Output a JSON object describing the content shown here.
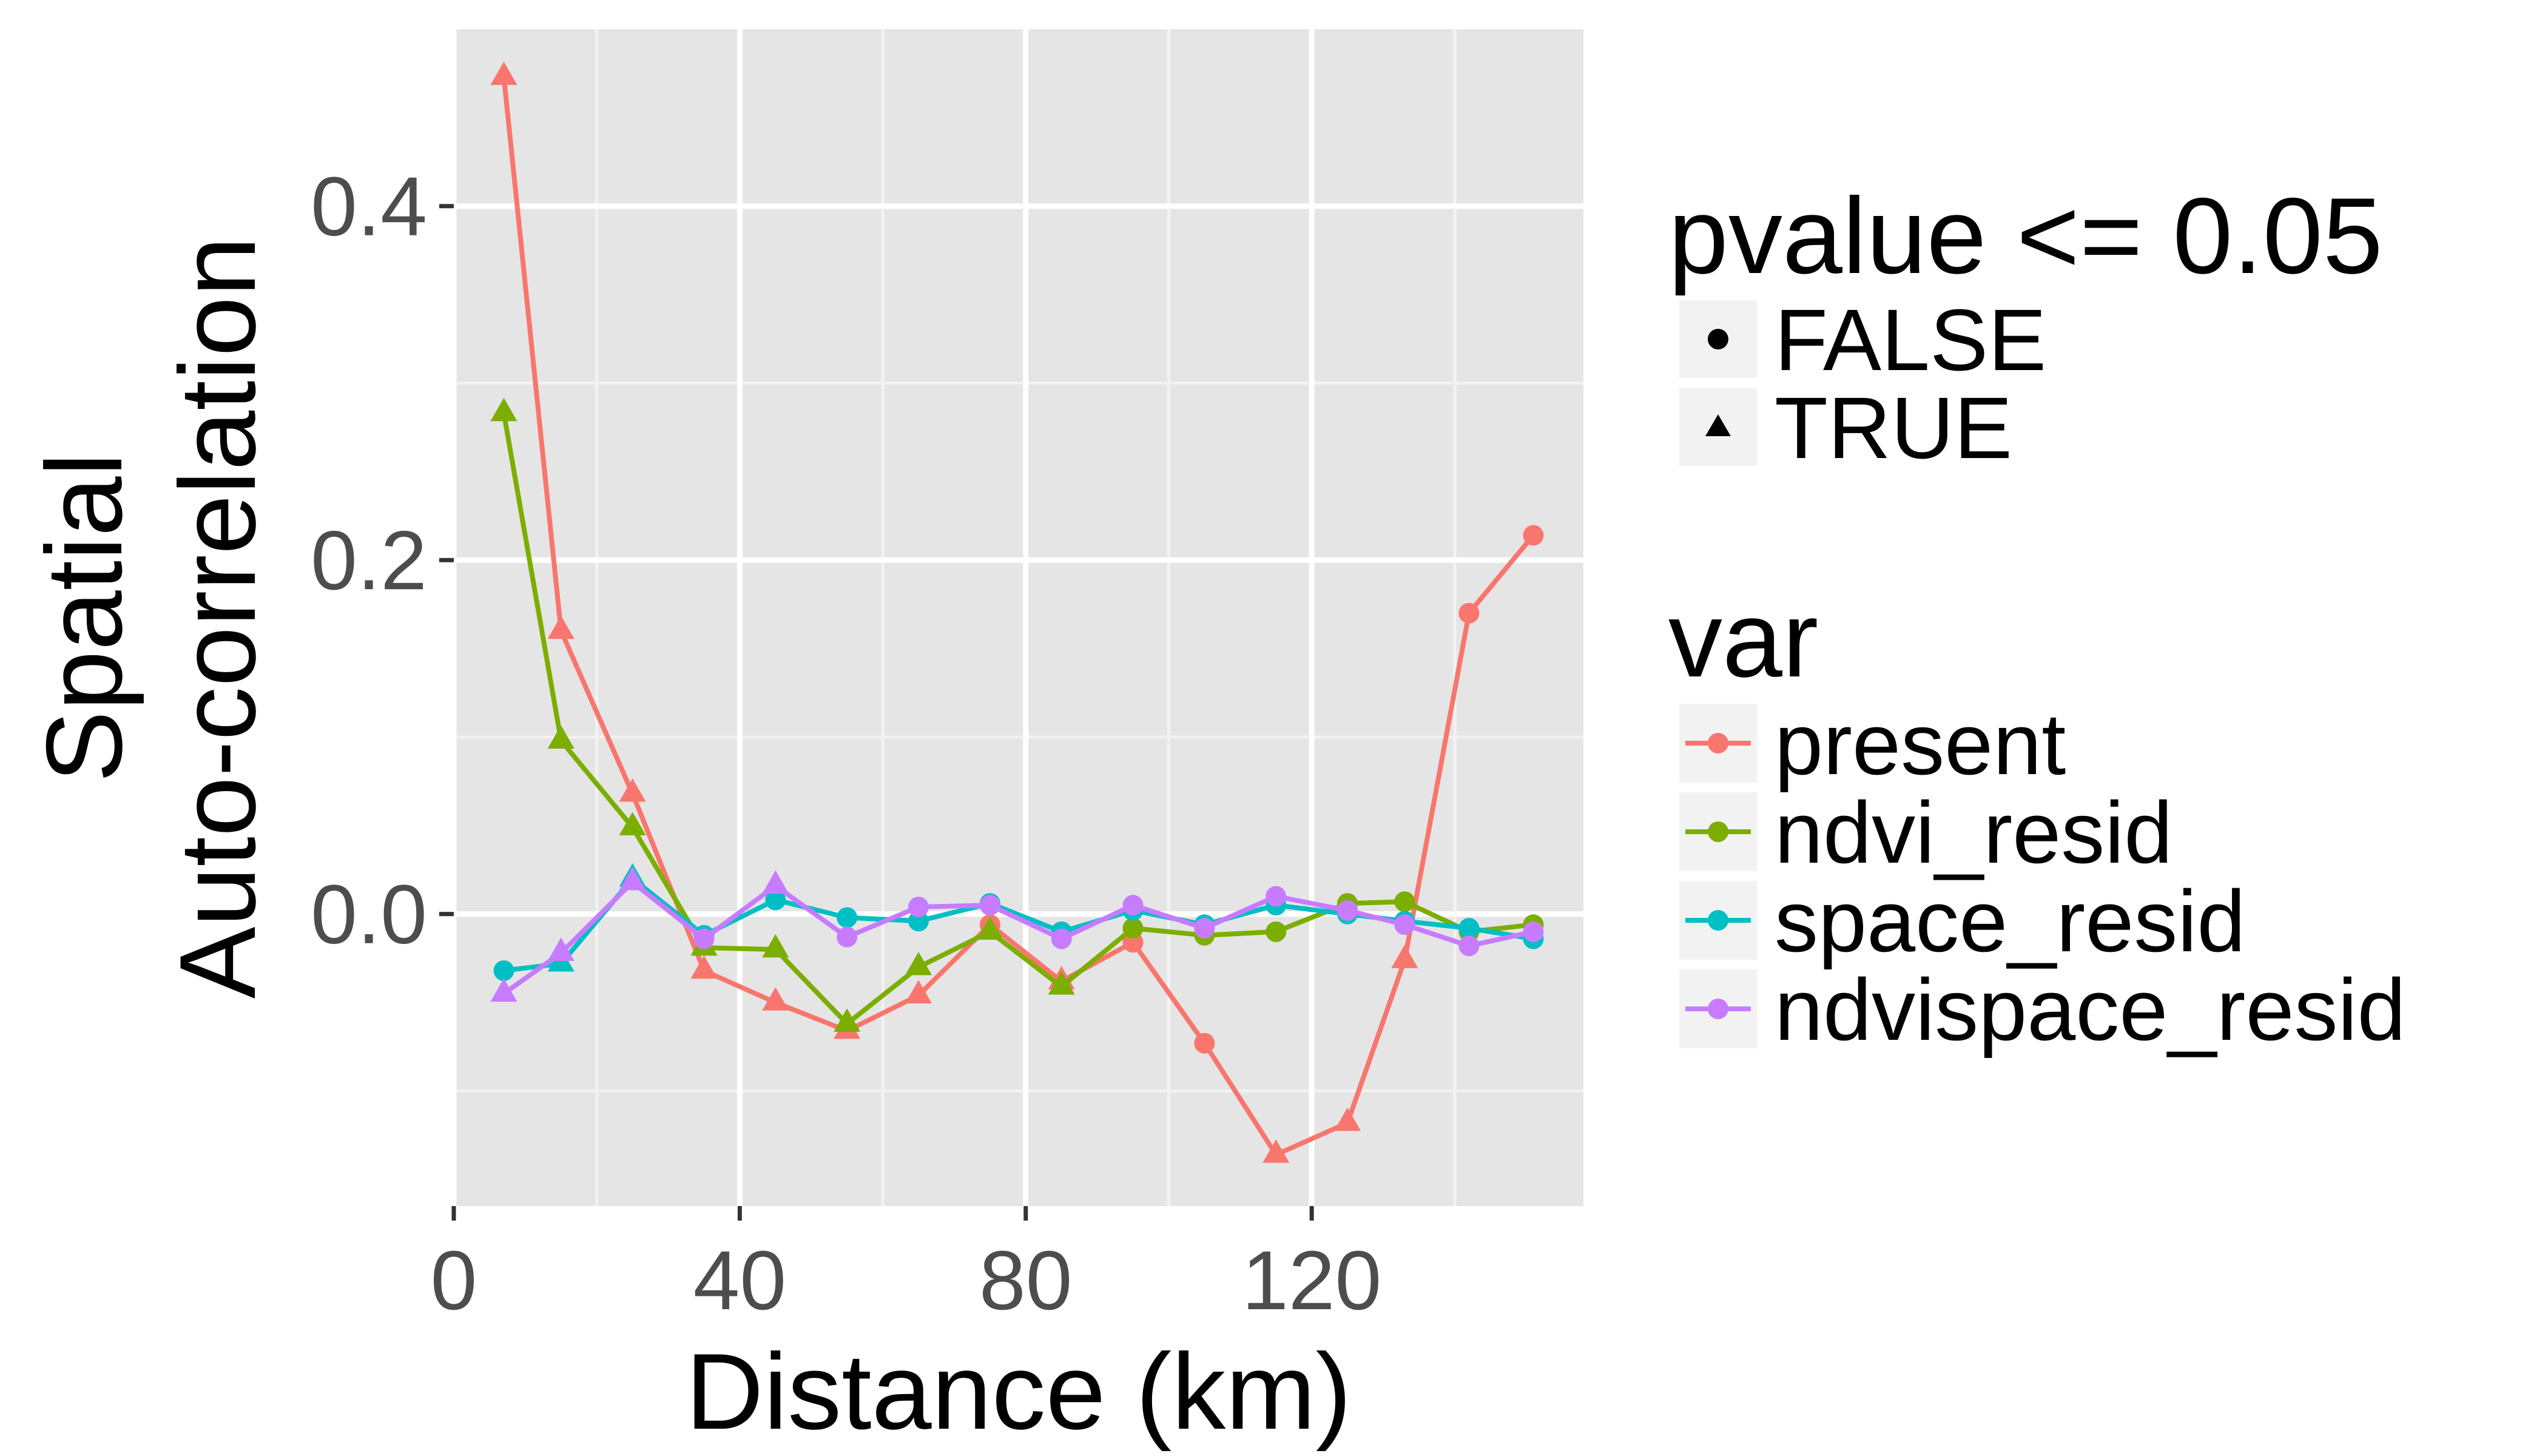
{
  "chart_data": {
    "type": "line",
    "xlabel": "Distance (km)",
    "ylabel_lines": [
      "Spatial",
      "Auto-correlation"
    ],
    "xlim": [
      0,
      158
    ],
    "ylim": [
      -0.165,
      0.5
    ],
    "x_ticks": [
      0,
      40,
      80,
      120
    ],
    "x_tick_labels": [
      "0",
      "40",
      "80",
      "120"
    ],
    "y_ticks": [
      0.0,
      0.2,
      0.4
    ],
    "y_tick_labels": [
      "0.0",
      "0.2",
      "0.4"
    ],
    "grid": true,
    "panel_background": "#e5e5e5",
    "legend_position": "right",
    "shape_legend": {
      "title": "pvalue <= 0.05",
      "entries": [
        {
          "label": "FALSE",
          "shape": "circle"
        },
        {
          "label": "TRUE",
          "shape": "triangle"
        }
      ]
    },
    "color_legend": {
      "title": "var",
      "entries": [
        {
          "label": "present",
          "color": "#F8766D"
        },
        {
          "label": "ndvi_resid",
          "color": "#7CAE00"
        },
        {
          "label": "space_resid",
          "color": "#00BFC4"
        },
        {
          "label": "ndvispace_resid",
          "color": "#C77CFF"
        }
      ]
    },
    "x": [
      7,
      15,
      25,
      35,
      45,
      55,
      65,
      75,
      85,
      95,
      105,
      115,
      125,
      133,
      142,
      151
    ],
    "series": [
      {
        "name": "present",
        "color": "#F8766D",
        "values": [
          0.473,
          0.16,
          0.068,
          -0.032,
          -0.05,
          -0.066,
          -0.046,
          -0.006,
          -0.038,
          -0.016,
          -0.073,
          -0.136,
          -0.118,
          -0.026,
          0.17,
          0.214
        ],
        "significant": [
          true,
          true,
          true,
          true,
          true,
          true,
          true,
          false,
          true,
          false,
          false,
          true,
          true,
          true,
          false,
          false
        ]
      },
      {
        "name": "ndvi_resid",
        "color": "#7CAE00",
        "values": [
          0.283,
          0.098,
          0.049,
          -0.019,
          -0.02,
          -0.062,
          -0.03,
          -0.01,
          -0.041,
          -0.008,
          -0.012,
          -0.01,
          0.006,
          0.007,
          -0.01,
          -0.006
        ],
        "significant": [
          true,
          true,
          true,
          true,
          true,
          true,
          true,
          true,
          true,
          false,
          false,
          false,
          false,
          false,
          false,
          false
        ]
      },
      {
        "name": "space_resid",
        "color": "#00BFC4",
        "values": [
          -0.032,
          -0.028,
          0.02,
          -0.012,
          0.008,
          -0.002,
          -0.004,
          0.006,
          -0.01,
          0.002,
          -0.006,
          0.005,
          0.0,
          -0.004,
          -0.008,
          -0.014
        ],
        "significant": [
          false,
          true,
          true,
          false,
          false,
          false,
          false,
          false,
          false,
          false,
          false,
          false,
          false,
          false,
          false,
          false
        ]
      },
      {
        "name": "ndvispace_resid",
        "color": "#C77CFF",
        "values": [
          -0.045,
          -0.022,
          0.018,
          -0.014,
          0.016,
          -0.013,
          0.004,
          0.005,
          -0.014,
          0.005,
          -0.008,
          0.01,
          0.002,
          -0.006,
          -0.018,
          -0.01
        ],
        "significant": [
          true,
          true,
          true,
          false,
          true,
          false,
          false,
          false,
          false,
          false,
          false,
          false,
          false,
          false,
          false,
          false
        ]
      }
    ]
  }
}
